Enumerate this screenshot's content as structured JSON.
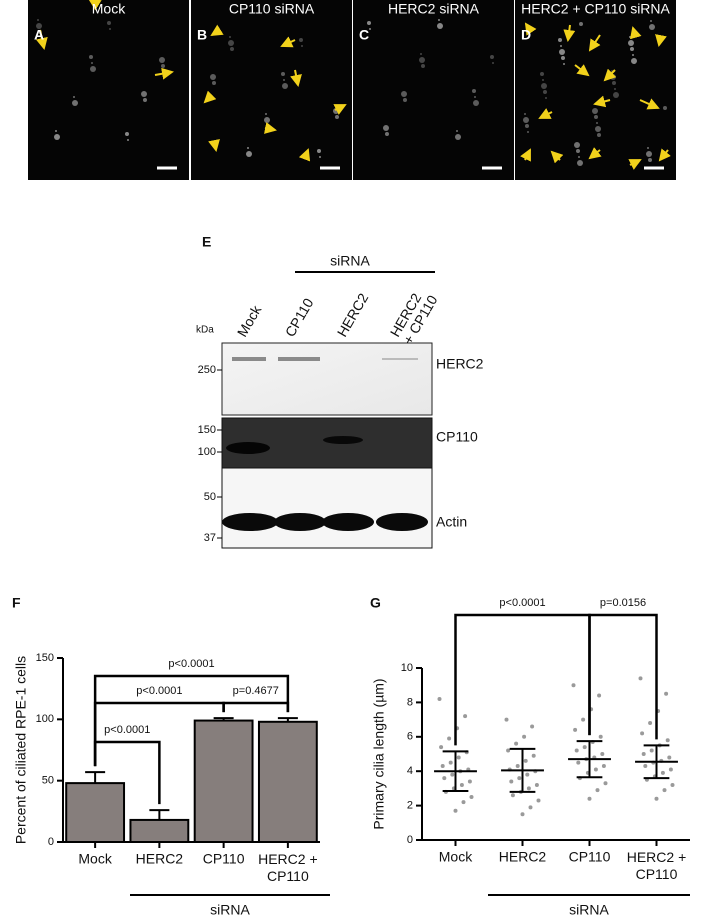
{
  "micrographs": [
    {
      "label": "A",
      "title": "Mock"
    },
    {
      "label": "B",
      "title": "CP110 siRNA"
    },
    {
      "label": "C",
      "title": "HERC2 siRNA"
    },
    {
      "label": "D",
      "title": "HERC2 + CP110 siRNA"
    }
  ],
  "blot": {
    "panel_label": "E",
    "group_label": "siRNA",
    "unit": "kDa",
    "lanes": [
      "Mock",
      "CP110",
      "HERC2",
      "HERC2 + CP110"
    ],
    "markers": [
      250,
      150,
      100,
      50,
      37
    ],
    "bands": [
      "HERC2",
      "CP110",
      "Actin"
    ]
  },
  "chart_data": [
    {
      "type": "bar",
      "panel_label": "F",
      "y_label": "Percent of ciliated RPE-1 cells",
      "categories": [
        "Mock",
        "HERC2",
        "CP110",
        "HERC2 + CP110"
      ],
      "values": [
        48,
        18,
        99,
        98
      ],
      "errors": [
        9,
        8,
        2,
        3
      ],
      "color": "#867e7c",
      "ylim": [
        0,
        150
      ],
      "yticks": [
        0,
        50,
        100,
        150
      ],
      "comparisons": [
        {
          "label": "p<0.0001",
          "groups": [
            "Mock",
            "HERC2"
          ]
        },
        {
          "label": "p<0.0001",
          "groups": [
            "Mock",
            "CP110"
          ]
        },
        {
          "label": "p=0.4677",
          "groups": [
            "CP110",
            "HERC2 + CP110"
          ]
        },
        {
          "label": "p<0.0001",
          "groups": [
            "Mock",
            "HERC2 + CP110"
          ]
        }
      ],
      "group_label": "siRNA"
    },
    {
      "type": "scatter",
      "panel_label": "G",
      "y_label": "Primary cilia length (µm)",
      "categories": [
        "Mock",
        "HERC2",
        "CP110",
        "HERC2 + CP110"
      ],
      "groups": [
        {
          "values": [
            8.2,
            7.2,
            6.5,
            5.9,
            5.4,
            5.1,
            4.8,
            4.5,
            4.3,
            4.1,
            4.0,
            3.8,
            3.6,
            3.4,
            3.2,
            3.0,
            2.8,
            2.5,
            2.2,
            1.7
          ],
          "mean": 4.0,
          "sd": 1.15
        },
        {
          "values": [
            7.0,
            6.6,
            6.0,
            5.6,
            5.2,
            4.9,
            4.6,
            4.3,
            4.1,
            4.0,
            3.8,
            3.6,
            3.4,
            3.2,
            3.0,
            2.8,
            2.6,
            2.3,
            1.9,
            1.5
          ],
          "mean": 4.05,
          "sd": 1.25
        },
        {
          "values": [
            9.0,
            8.4,
            7.6,
            7.0,
            6.4,
            6.0,
            5.7,
            5.4,
            5.2,
            5.0,
            4.8,
            4.7,
            4.5,
            4.3,
            4.1,
            3.9,
            3.6,
            3.3,
            2.9,
            2.4
          ],
          "mean": 4.7,
          "sd": 1.05
        },
        {
          "values": [
            9.4,
            8.5,
            7.5,
            6.8,
            6.2,
            5.8,
            5.5,
            5.2,
            5.0,
            4.8,
            4.6,
            4.5,
            4.3,
            4.1,
            3.9,
            3.7,
            3.5,
            3.2,
            2.9,
            2.4
          ],
          "mean": 4.55,
          "sd": 0.95
        }
      ],
      "color": "#9a9a9a",
      "ylim": [
        0,
        10
      ],
      "yticks": [
        0,
        2,
        4,
        6,
        8,
        10
      ],
      "comparisons": [
        {
          "label": "p<0.0001",
          "groups": [
            "Mock",
            "CP110"
          ]
        },
        {
          "label": "p=0.0156",
          "groups": [
            "CP110",
            "HERC2 + CP110"
          ]
        }
      ],
      "group_label": "siRNA"
    }
  ]
}
